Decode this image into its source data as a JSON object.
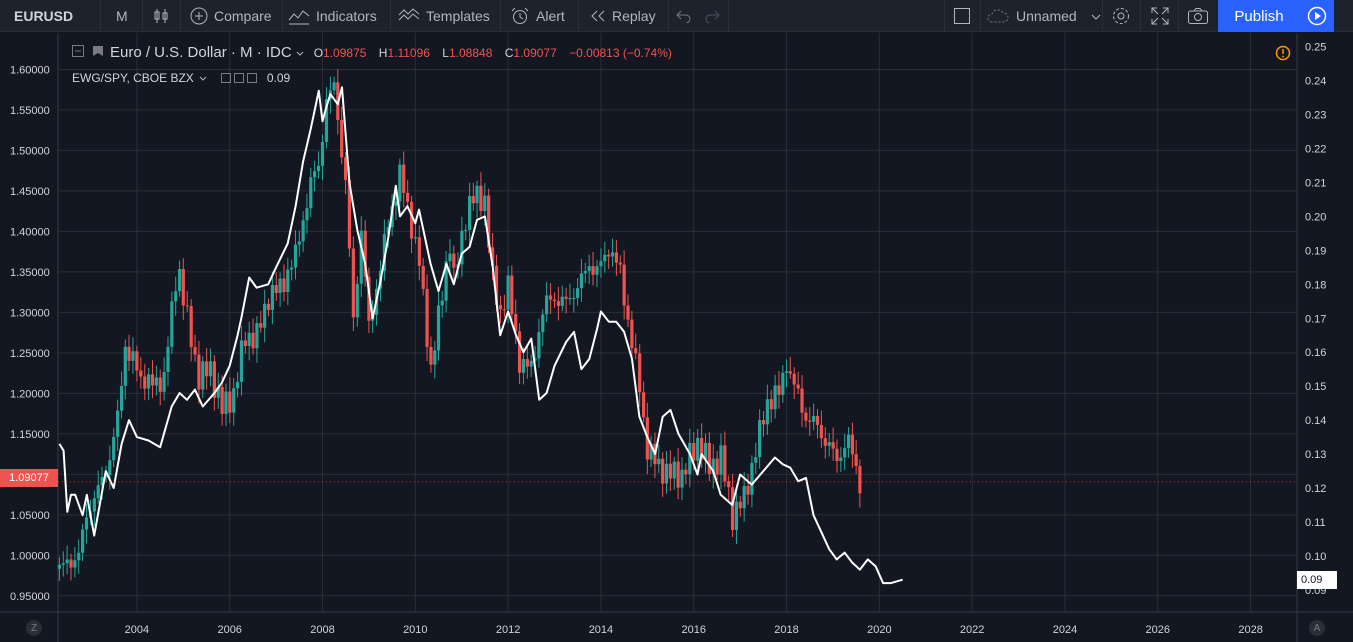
{
  "toolbar": {
    "symbol": "EURUSD",
    "interval": "M",
    "compare": "Compare",
    "indicators": "Indicators",
    "templates": "Templates",
    "alert": "Alert",
    "replay": "Replay",
    "layout_name": "Unnamed",
    "publish": "Publish"
  },
  "legend": {
    "title": "Euro / U.S. Dollar · M · IDC",
    "o_key": "O",
    "o_val": "1.09875",
    "h_key": "H",
    "h_val": "1.11096",
    "l_key": "L",
    "l_val": "1.08848",
    "c_key": "C",
    "c_val": "1.09077",
    "change": "−0.00813 (−0.74%)",
    "compare_title": "EWG/SPY, CBOE BZX",
    "compare_value": "0.09"
  },
  "price_labels": {
    "left_last": "1.09077",
    "right_last": "0.09"
  },
  "axis_buttons": {
    "left": "Z",
    "right": "A"
  },
  "colors": {
    "background": "#131722",
    "grid": "#2a2e39",
    "up": "#26a69a",
    "down": "#ef5350",
    "compare_line": "#ffffff",
    "accent": "#2962ff"
  },
  "chart_data": {
    "type": "candlestick",
    "title": "Euro / U.S. Dollar · M · IDC",
    "x_ticks": [
      "2004",
      "2006",
      "2008",
      "2010",
      "2012",
      "2014",
      "2016",
      "2018",
      "2020",
      "2022",
      "2024",
      "2026",
      "2028"
    ],
    "x_range": [
      2002.3,
      2029.0
    ],
    "left_axis": {
      "ticks": [
        "0.95000",
        "1.00000",
        "1.05000",
        "1.10000",
        "1.15000",
        "1.20000",
        "1.25000",
        "1.30000",
        "1.35000",
        "1.40000",
        "1.45000",
        "1.50000",
        "1.55000",
        "1.60000"
      ],
      "range": [
        0.93,
        1.645
      ]
    },
    "right_axis": {
      "ticks": [
        "0.09",
        "0.10",
        "0.11",
        "0.12",
        "0.13",
        "0.14",
        "0.15",
        "0.16",
        "0.17",
        "0.18",
        "0.19",
        "0.20",
        "0.21",
        "0.22",
        "0.23",
        "0.24",
        "0.25"
      ],
      "range": [
        0.0835,
        0.254
      ]
    },
    "grid": true,
    "series": [
      {
        "name": "EURUSD",
        "kind": "monthly close",
        "axis": "left",
        "points": [
          [
            2002.33,
            0.98
          ],
          [
            2002.58,
            0.99
          ],
          [
            2002.83,
            1.0
          ],
          [
            2003.0,
            1.05
          ],
          [
            2003.25,
            1.08
          ],
          [
            2003.5,
            1.12
          ],
          [
            2003.67,
            1.17
          ],
          [
            2003.83,
            1.26
          ],
          [
            2004.0,
            1.24
          ],
          [
            2004.17,
            1.22
          ],
          [
            2004.42,
            1.21
          ],
          [
            2004.67,
            1.22
          ],
          [
            2004.92,
            1.34
          ],
          [
            2005.0,
            1.35
          ],
          [
            2005.17,
            1.29
          ],
          [
            2005.42,
            1.22
          ],
          [
            2005.67,
            1.23
          ],
          [
            2005.92,
            1.18
          ],
          [
            2006.17,
            1.2
          ],
          [
            2006.42,
            1.27
          ],
          [
            2006.67,
            1.27
          ],
          [
            2006.92,
            1.32
          ],
          [
            2007.17,
            1.33
          ],
          [
            2007.5,
            1.37
          ],
          [
            2007.83,
            1.46
          ],
          [
            2008.0,
            1.48
          ],
          [
            2008.17,
            1.56
          ],
          [
            2008.33,
            1.58
          ],
          [
            2008.58,
            1.46
          ],
          [
            2008.75,
            1.29
          ],
          [
            2008.92,
            1.4
          ],
          [
            2009.08,
            1.28
          ],
          [
            2009.25,
            1.33
          ],
          [
            2009.5,
            1.41
          ],
          [
            2009.75,
            1.47
          ],
          [
            2009.92,
            1.43
          ],
          [
            2010.17,
            1.36
          ],
          [
            2010.42,
            1.23
          ],
          [
            2010.58,
            1.29
          ],
          [
            2010.83,
            1.39
          ],
          [
            2010.92,
            1.34
          ],
          [
            2011.17,
            1.42
          ],
          [
            2011.33,
            1.44
          ],
          [
            2011.58,
            1.44
          ],
          [
            2011.75,
            1.34
          ],
          [
            2011.92,
            1.3
          ],
          [
            2012.08,
            1.33
          ],
          [
            2012.33,
            1.24
          ],
          [
            2012.58,
            1.23
          ],
          [
            2012.83,
            1.3
          ],
          [
            2013.0,
            1.32
          ],
          [
            2013.25,
            1.31
          ],
          [
            2013.58,
            1.33
          ],
          [
            2013.83,
            1.36
          ],
          [
            2014.0,
            1.35
          ],
          [
            2014.25,
            1.38
          ],
          [
            2014.5,
            1.35
          ],
          [
            2014.75,
            1.26
          ],
          [
            2014.92,
            1.21
          ],
          [
            2015.08,
            1.13
          ],
          [
            2015.33,
            1.11
          ],
          [
            2015.58,
            1.1
          ],
          [
            2015.83,
            1.1
          ],
          [
            2016.17,
            1.14
          ],
          [
            2016.42,
            1.11
          ],
          [
            2016.67,
            1.12
          ],
          [
            2016.92,
            1.05
          ],
          [
            2017.17,
            1.07
          ],
          [
            2017.42,
            1.13
          ],
          [
            2017.67,
            1.19
          ],
          [
            2017.92,
            1.2
          ],
          [
            2018.08,
            1.24
          ],
          [
            2018.25,
            1.21
          ],
          [
            2018.5,
            1.17
          ],
          [
            2018.75,
            1.16
          ],
          [
            2018.92,
            1.14
          ],
          [
            2019.17,
            1.12
          ],
          [
            2019.42,
            1.14
          ],
          [
            2019.58,
            1.11
          ],
          [
            2019.67,
            1.09
          ]
        ]
      },
      {
        "name": "EWG/SPY, CBOE BZX",
        "kind": "line",
        "axis": "right",
        "points": [
          [
            2002.33,
            0.133
          ],
          [
            2002.42,
            0.131
          ],
          [
            2002.5,
            0.113
          ],
          [
            2002.58,
            0.118
          ],
          [
            2002.67,
            0.118
          ],
          [
            2002.83,
            0.112
          ],
          [
            2002.92,
            0.118
          ],
          [
            2003.08,
            0.106
          ],
          [
            2003.33,
            0.125
          ],
          [
            2003.5,
            0.12
          ],
          [
            2003.67,
            0.133
          ],
          [
            2003.83,
            0.14
          ],
          [
            2004.0,
            0.135
          ],
          [
            2004.25,
            0.134
          ],
          [
            2004.5,
            0.132
          ],
          [
            2004.75,
            0.144
          ],
          [
            2004.92,
            0.148
          ],
          [
            2005.08,
            0.146
          ],
          [
            2005.25,
            0.149
          ],
          [
            2005.42,
            0.144
          ],
          [
            2005.67,
            0.148
          ],
          [
            2005.83,
            0.151
          ],
          [
            2006.0,
            0.156
          ],
          [
            2006.17,
            0.165
          ],
          [
            2006.25,
            0.17
          ],
          [
            2006.42,
            0.182
          ],
          [
            2006.58,
            0.179
          ],
          [
            2006.83,
            0.18
          ],
          [
            2007.0,
            0.185
          ],
          [
            2007.25,
            0.192
          ],
          [
            2007.42,
            0.203
          ],
          [
            2007.58,
            0.216
          ],
          [
            2007.75,
            0.226
          ],
          [
            2007.92,
            0.237
          ],
          [
            2008.0,
            0.228
          ],
          [
            2008.08,
            0.232
          ],
          [
            2008.17,
            0.236
          ],
          [
            2008.33,
            0.233
          ],
          [
            2008.42,
            0.238
          ],
          [
            2008.58,
            0.21
          ],
          [
            2008.75,
            0.196
          ],
          [
            2008.92,
            0.186
          ],
          [
            2009.08,
            0.17
          ],
          [
            2009.25,
            0.181
          ],
          [
            2009.42,
            0.194
          ],
          [
            2009.58,
            0.209
          ],
          [
            2009.67,
            0.2
          ],
          [
            2009.83,
            0.203
          ],
          [
            2010.0,
            0.198
          ],
          [
            2010.08,
            0.202
          ],
          [
            2010.33,
            0.186
          ],
          [
            2010.5,
            0.178
          ],
          [
            2010.67,
            0.186
          ],
          [
            2010.83,
            0.18
          ],
          [
            2011.0,
            0.189
          ],
          [
            2011.17,
            0.191
          ],
          [
            2011.33,
            0.199
          ],
          [
            2011.5,
            0.2
          ],
          [
            2011.67,
            0.185
          ],
          [
            2011.83,
            0.165
          ],
          [
            2012.0,
            0.172
          ],
          [
            2012.17,
            0.165
          ],
          [
            2012.33,
            0.16
          ],
          [
            2012.5,
            0.164
          ],
          [
            2012.67,
            0.146
          ],
          [
            2012.83,
            0.148
          ],
          [
            2013.0,
            0.156
          ],
          [
            2013.25,
            0.163
          ],
          [
            2013.42,
            0.166
          ],
          [
            2013.58,
            0.155
          ],
          [
            2013.75,
            0.158
          ],
          [
            2013.92,
            0.167
          ],
          [
            2014.0,
            0.172
          ],
          [
            2014.17,
            0.169
          ],
          [
            2014.33,
            0.169
          ],
          [
            2014.5,
            0.166
          ],
          [
            2014.67,
            0.158
          ],
          [
            2014.83,
            0.141
          ],
          [
            2015.0,
            0.135
          ],
          [
            2015.17,
            0.13
          ],
          [
            2015.33,
            0.141
          ],
          [
            2015.5,
            0.143
          ],
          [
            2015.67,
            0.136
          ],
          [
            2015.92,
            0.13
          ],
          [
            2016.08,
            0.124
          ],
          [
            2016.17,
            0.13
          ],
          [
            2016.42,
            0.125
          ],
          [
            2016.58,
            0.118
          ],
          [
            2016.83,
            0.115
          ],
          [
            2017.0,
            0.124
          ],
          [
            2017.25,
            0.121
          ],
          [
            2017.5,
            0.125
          ],
          [
            2017.75,
            0.129
          ],
          [
            2017.92,
            0.127
          ],
          [
            2018.08,
            0.126
          ],
          [
            2018.25,
            0.122
          ],
          [
            2018.42,
            0.123
          ],
          [
            2018.58,
            0.112
          ],
          [
            2018.75,
            0.107
          ],
          [
            2018.92,
            0.102
          ],
          [
            2019.08,
            0.099
          ],
          [
            2019.25,
            0.101
          ],
          [
            2019.42,
            0.098
          ],
          [
            2019.58,
            0.096
          ],
          [
            2019.75,
            0.099
          ],
          [
            2019.92,
            0.097
          ],
          [
            2020.08,
            0.092
          ],
          [
            2020.25,
            0.092
          ],
          [
            2020.5,
            0.093
          ]
        ]
      }
    ],
    "last_values": {
      "EURUSD": 1.09077,
      "EWG/SPY": 0.09
    }
  }
}
